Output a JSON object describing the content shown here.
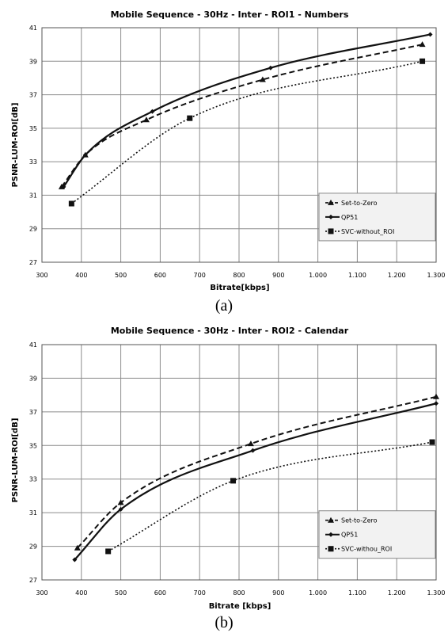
{
  "chart_data": [
    {
      "type": "line",
      "title": "Mobile Sequence - 30Hz - Inter - ROI1 - Numbers",
      "xlabel": "Bitrate[kbps]",
      "ylabel": "PSNR-LUM-ROI[dB]",
      "xlim": [
        300,
        1300
      ],
      "ylim": [
        27,
        41
      ],
      "x_ticks": [
        "300",
        "400",
        "500",
        "600",
        "700",
        "800",
        "900",
        "1.000",
        "1.100",
        "1.200",
        "1.300"
      ],
      "y_ticks": [
        "27",
        "29",
        "31",
        "33",
        "35",
        "37",
        "39",
        "41"
      ],
      "grid": true,
      "legend_position": "lower-right",
      "caption": "(a)",
      "series": [
        {
          "name": "Set-to-Zero",
          "dash": "dashed",
          "marker": "triangle",
          "points": [
            [
              350,
              31.5
            ],
            [
              410,
              33.4
            ],
            [
              565,
              35.5
            ],
            [
              860,
              37.9
            ],
            [
              1265,
              40.0
            ]
          ]
        },
        {
          "name": "QP51",
          "dash": "solid",
          "marker": "diamond",
          "points": [
            [
              355,
              31.5
            ],
            [
              410,
              33.4
            ],
            [
              580,
              36.0
            ],
            [
              880,
              38.6
            ],
            [
              1285,
              40.6
            ]
          ]
        },
        {
          "name": "SVC-without_ROI",
          "dash": "dotted",
          "marker": "square",
          "points": [
            [
              375,
              30.5
            ],
            [
              675,
              35.6
            ],
            [
              1265,
              39.0
            ]
          ]
        }
      ]
    },
    {
      "type": "line",
      "title": "Mobile Sequence - 30Hz - Inter - ROI2 - Calendar",
      "xlabel": "Bitrate [kbps]",
      "ylabel": "PSNR-LUM-ROI[dB]",
      "xlim": [
        300,
        1300
      ],
      "ylim": [
        27,
        41
      ],
      "x_ticks": [
        "300",
        "400",
        "500",
        "600",
        "700",
        "800",
        "900",
        "1.000",
        "1.100",
        "1.200",
        "1.300"
      ],
      "y_ticks": [
        "27",
        "29",
        "31",
        "33",
        "35",
        "37",
        "39",
        "41"
      ],
      "grid": true,
      "legend_position": "lower-right",
      "caption": "(b)",
      "series": [
        {
          "name": "Set-to-Zero",
          "dash": "dashed",
          "marker": "triangle",
          "points": [
            [
              390,
              28.9
            ],
            [
              500,
              31.6
            ],
            [
              830,
              35.1
            ],
            [
              1300,
              37.9
            ]
          ]
        },
        {
          "name": "QP51",
          "dash": "solid",
          "marker": "diamond",
          "points": [
            [
              383,
              28.2
            ],
            [
              500,
              31.2
            ],
            [
              835,
              34.7
            ],
            [
              1300,
              37.5
            ]
          ]
        },
        {
          "name": "SVC-withou_ROI",
          "dash": "dotted",
          "marker": "square",
          "points": [
            [
              468,
              28.7
            ],
            [
              785,
              32.9
            ],
            [
              1290,
              35.2
            ]
          ]
        }
      ]
    }
  ]
}
